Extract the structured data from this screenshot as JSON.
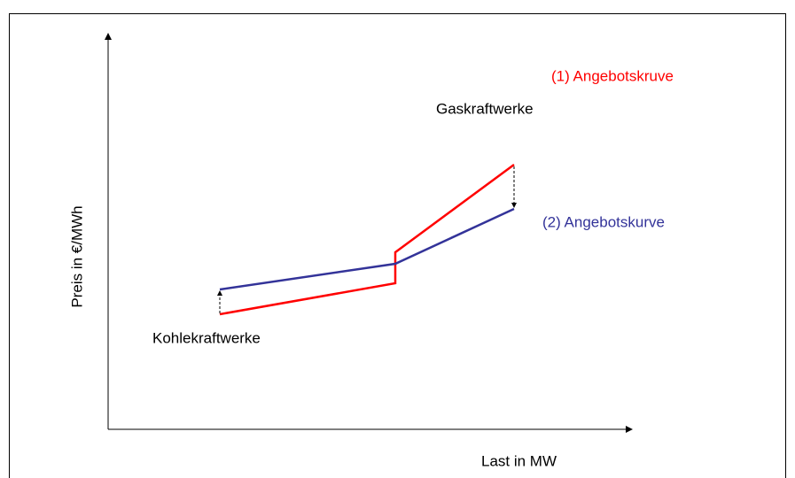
{
  "axes": {
    "x_label": "Last in MW",
    "y_label": "Preis in €/MWh"
  },
  "curves": [
    {
      "label": "(1) Angebotskruve"
    },
    {
      "label": "(2) Angebotskurve"
    }
  ],
  "annotations": [
    "Gaskraftwerke",
    "Kohlekraftwerke"
  ]
}
